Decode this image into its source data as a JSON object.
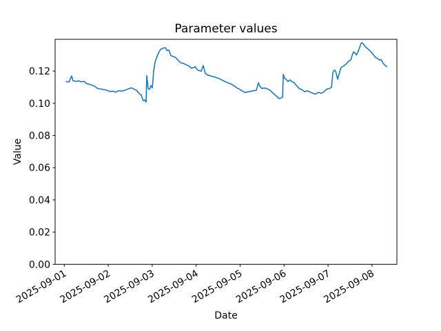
{
  "colors": {
    "line": "#1f77b4",
    "text": "#000000",
    "background": "#ffffff"
  },
  "chart_data": {
    "type": "line",
    "title": "Parameter values",
    "xlabel": "Date",
    "ylabel": "Value",
    "grid": false,
    "legend": "none",
    "x_unit": "days since 2025-09-01 00:00",
    "x_tick_labels": [
      "2025-09-01",
      "2025-09-02",
      "2025-09-03",
      "2025-09-04",
      "2025-09-05",
      "2025-09-06",
      "2025-09-07",
      "2025-09-08"
    ],
    "x_tick_days": [
      0,
      1,
      2,
      3,
      4,
      5,
      6,
      7
    ],
    "y_ticks": [
      0.0,
      0.02,
      0.04,
      0.06,
      0.08,
      0.1,
      0.12
    ],
    "y_tick_labels": [
      "0.00",
      "0.02",
      "0.04",
      "0.06",
      "0.08",
      "0.10",
      "0.12"
    ],
    "ylim": [
      0.0,
      0.1397
    ],
    "xlim_days": [
      -0.208,
      7.566
    ],
    "series": [
      {
        "name": "parameter-value",
        "color": "#1f77b4",
        "points": [
          [
            0.042,
            0.1135
          ],
          [
            0.105,
            0.1132
          ],
          [
            0.168,
            0.117
          ],
          [
            0.199,
            0.114
          ],
          [
            0.262,
            0.1136
          ],
          [
            0.324,
            0.1139
          ],
          [
            0.387,
            0.1133
          ],
          [
            0.45,
            0.1136
          ],
          [
            0.513,
            0.1121
          ],
          [
            0.575,
            0.1118
          ],
          [
            0.638,
            0.1112
          ],
          [
            0.701,
            0.1105
          ],
          [
            0.748,
            0.1093
          ],
          [
            0.81,
            0.1089
          ],
          [
            0.889,
            0.1086
          ],
          [
            0.967,
            0.1081
          ],
          [
            1.045,
            0.1073
          ],
          [
            1.108,
            0.1076
          ],
          [
            1.171,
            0.1069
          ],
          [
            1.234,
            0.1078
          ],
          [
            1.296,
            0.1076
          ],
          [
            1.359,
            0.1079
          ],
          [
            1.422,
            0.1086
          ],
          [
            1.484,
            0.1092
          ],
          [
            1.531,
            0.1096
          ],
          [
            1.578,
            0.1089
          ],
          [
            1.641,
            0.1081
          ],
          [
            1.704,
            0.1061
          ],
          [
            1.751,
            0.1051
          ],
          [
            1.798,
            0.1016
          ],
          [
            1.829,
            0.1021
          ],
          [
            1.861,
            0.1008
          ],
          [
            1.876,
            0.1173
          ],
          [
            1.908,
            0.109
          ],
          [
            1.939,
            0.1086
          ],
          [
            1.97,
            0.111
          ],
          [
            2.002,
            0.1096
          ],
          [
            2.033,
            0.12
          ],
          [
            2.064,
            0.1256
          ],
          [
            2.096,
            0.128
          ],
          [
            2.143,
            0.1313
          ],
          [
            2.19,
            0.1335
          ],
          [
            2.252,
            0.1343
          ],
          [
            2.299,
            0.1345
          ],
          [
            2.331,
            0.1328
          ],
          [
            2.378,
            0.133
          ],
          [
            2.425,
            0.1296
          ],
          [
            2.488,
            0.129
          ],
          [
            2.535,
            0.1283
          ],
          [
            2.582,
            0.127
          ],
          [
            2.644,
            0.1252
          ],
          [
            2.707,
            0.1248
          ],
          [
            2.77,
            0.124
          ],
          [
            2.833,
            0.1232
          ],
          [
            2.895,
            0.1218
          ],
          [
            2.942,
            0.1222
          ],
          [
            2.974,
            0.1228
          ],
          [
            3.036,
            0.1206
          ],
          [
            3.115,
            0.1199
          ],
          [
            3.162,
            0.1235
          ],
          [
            3.209,
            0.1185
          ],
          [
            3.256,
            0.1176
          ],
          [
            3.319,
            0.1171
          ],
          [
            3.366,
            0.1166
          ],
          [
            3.428,
            0.1163
          ],
          [
            3.491,
            0.1156
          ],
          [
            3.554,
            0.115
          ],
          [
            3.632,
            0.1138
          ],
          [
            3.711,
            0.1128
          ],
          [
            3.805,
            0.1118
          ],
          [
            3.868,
            0.1107
          ],
          [
            3.93,
            0.1095
          ],
          [
            3.993,
            0.1086
          ],
          [
            4.056,
            0.1075
          ],
          [
            4.118,
            0.1067
          ],
          [
            4.181,
            0.1072
          ],
          [
            4.244,
            0.1075
          ],
          [
            4.307,
            0.1078
          ],
          [
            4.369,
            0.1081
          ],
          [
            4.416,
            0.1128
          ],
          [
            4.448,
            0.1105
          ],
          [
            4.495,
            0.1092
          ],
          [
            4.557,
            0.1095
          ],
          [
            4.62,
            0.109
          ],
          [
            4.683,
            0.108
          ],
          [
            4.746,
            0.1064
          ],
          [
            4.808,
            0.1049
          ],
          [
            4.887,
            0.1029
          ],
          [
            4.934,
            0.1033
          ],
          [
            4.965,
            0.1038
          ],
          [
            4.981,
            0.118
          ],
          [
            5.012,
            0.1155
          ],
          [
            5.043,
            0.1149
          ],
          [
            5.09,
            0.1135
          ],
          [
            5.137,
            0.1145
          ],
          [
            5.184,
            0.1133
          ],
          [
            5.231,
            0.1128
          ],
          [
            5.278,
            0.1112
          ],
          [
            5.341,
            0.1092
          ],
          [
            5.404,
            0.1085
          ],
          [
            5.467,
            0.1072
          ],
          [
            5.529,
            0.1078
          ],
          [
            5.592,
            0.107
          ],
          [
            5.655,
            0.1062
          ],
          [
            5.717,
            0.1057
          ],
          [
            5.78,
            0.1068
          ],
          [
            5.843,
            0.1062
          ],
          [
            5.906,
            0.1071
          ],
          [
            5.968,
            0.1088
          ],
          [
            6.031,
            0.1092
          ],
          [
            6.078,
            0.11
          ],
          [
            6.109,
            0.1192
          ],
          [
            6.141,
            0.1206
          ],
          [
            6.172,
            0.12
          ],
          [
            6.219,
            0.1149
          ],
          [
            6.266,
            0.1199
          ],
          [
            6.297,
            0.1222
          ],
          [
            6.345,
            0.123
          ],
          [
            6.392,
            0.124
          ],
          [
            6.423,
            0.1248
          ],
          [
            6.47,
            0.1262
          ],
          [
            6.517,
            0.127
          ],
          [
            6.548,
            0.1298
          ],
          [
            6.58,
            0.132
          ],
          [
            6.611,
            0.1312
          ],
          [
            6.642,
            0.13
          ],
          [
            6.689,
            0.1325
          ],
          [
            6.72,
            0.1348
          ],
          [
            6.752,
            0.1372
          ],
          [
            6.768,
            0.1376
          ],
          [
            6.799,
            0.137
          ],
          [
            6.846,
            0.1352
          ],
          [
            6.893,
            0.134
          ],
          [
            6.94,
            0.133
          ],
          [
            6.987,
            0.1315
          ],
          [
            7.034,
            0.13
          ],
          [
            7.081,
            0.1285
          ],
          [
            7.128,
            0.1278
          ],
          [
            7.175,
            0.1268
          ],
          [
            7.207,
            0.1272
          ],
          [
            7.254,
            0.1248
          ],
          [
            7.301,
            0.1235
          ],
          [
            7.332,
            0.1228
          ]
        ]
      }
    ]
  }
}
